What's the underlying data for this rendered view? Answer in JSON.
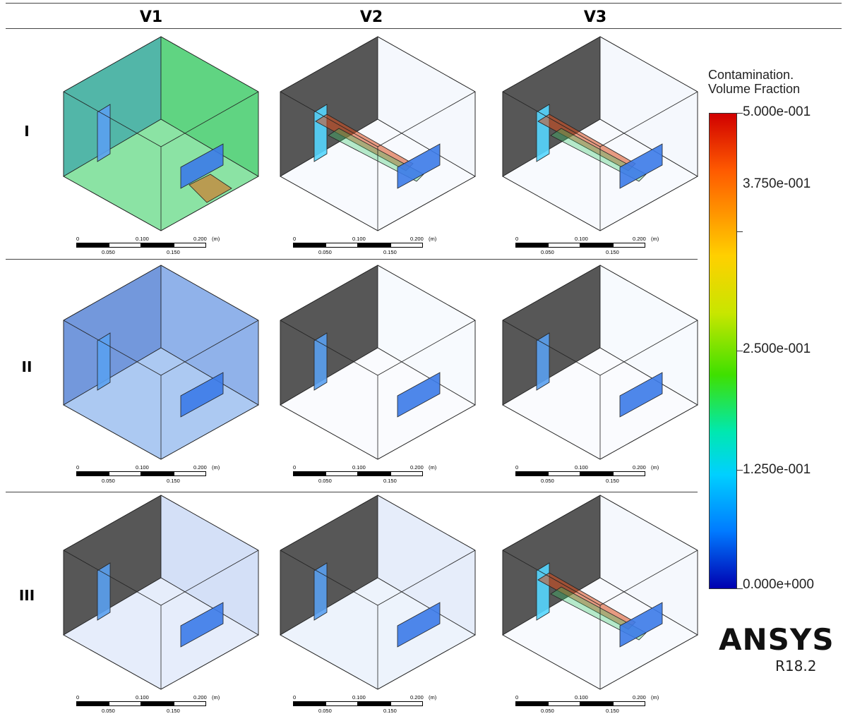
{
  "columns": [
    "V1",
    "V2",
    "V3"
  ],
  "rows": [
    "I",
    "II",
    "III"
  ],
  "scale_bar": {
    "zero": "0",
    "mid": "0.100",
    "max": "0.200",
    "unit": "(m)",
    "q1": "0.050",
    "q3": "0.150"
  },
  "legend": {
    "title_line1": "Contamination.",
    "title_line2": "Volume Fraction",
    "ticks": [
      "5.000e-001",
      "3.750e-001",
      "2.500e-001",
      "1.250e-001",
      "0.000e+000"
    ]
  },
  "brand": {
    "name": "ANSYS",
    "version": "R18.2"
  },
  "colors": {
    "box_edge": "#222222",
    "wall_dark": "#3a3a3a",
    "outlet_blue": "#3b7ae8"
  },
  "panels": [
    {
      "row": "I",
      "col": "V1",
      "style": "filled-green",
      "hotspot": "right-bottom"
    },
    {
      "row": "I",
      "col": "V2",
      "style": "plume",
      "hotspot": "left-inlet"
    },
    {
      "row": "I",
      "col": "V3",
      "style": "plume",
      "hotspot": "left-inlet"
    },
    {
      "row": "II",
      "col": "V1",
      "style": "filled-blue",
      "hotspot": "none"
    },
    {
      "row": "II",
      "col": "V2",
      "style": "faint",
      "hotspot": "none"
    },
    {
      "row": "II",
      "col": "V3",
      "style": "faint",
      "hotspot": "none"
    },
    {
      "row": "III",
      "col": "V1",
      "style": "faint-blue",
      "hotspot": "none"
    },
    {
      "row": "III",
      "col": "V2",
      "style": "faint-plume",
      "hotspot": "none"
    },
    {
      "row": "III",
      "col": "V3",
      "style": "plume",
      "hotspot": "left-inlet"
    }
  ]
}
